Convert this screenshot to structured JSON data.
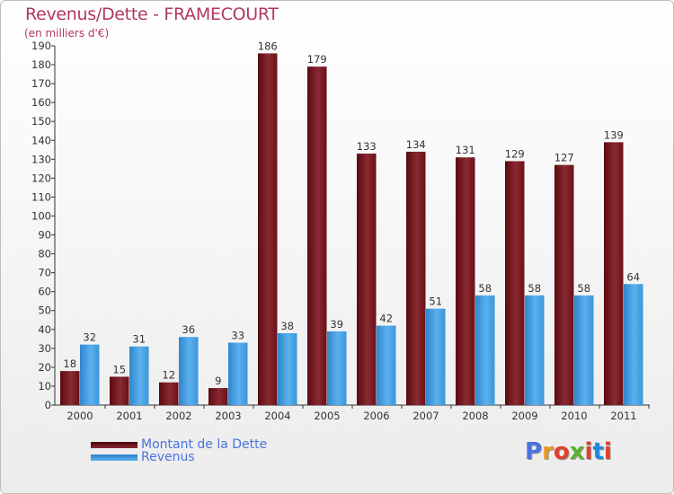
{
  "header": {
    "title": "Revenus/Dette - FRAMECOURT",
    "subtitle": "(en milliers d'€)"
  },
  "legend": {
    "items": [
      {
        "label": "Montant de la Dette",
        "color": "#6b0c14"
      },
      {
        "label": "Revenus",
        "color": "#3a9ae0"
      }
    ]
  },
  "logo": {
    "text": "Proxiti",
    "colors": [
      "#4a72e0",
      "#e89a1c",
      "#e0402c",
      "#5cb030",
      "#e0402c",
      "#1c8ce0",
      "#e0402c"
    ]
  },
  "chart_data": {
    "type": "bar",
    "title": "Revenus/Dette - FRAMECOURT",
    "subtitle": "(en milliers d'€)",
    "categories": [
      "2000",
      "2001",
      "2002",
      "2003",
      "2004",
      "2005",
      "2006",
      "2007",
      "2008",
      "2009",
      "2010",
      "2011"
    ],
    "series": [
      {
        "name": "Montant de la Dette",
        "color": "#7a1c24",
        "values": [
          18,
          15,
          12,
          9,
          186,
          179,
          133,
          134,
          131,
          129,
          127,
          139
        ]
      },
      {
        "name": "Revenus",
        "color": "#3a9ae0",
        "values": [
          32,
          31,
          36,
          33,
          38,
          39,
          42,
          51,
          58,
          58,
          58,
          64
        ]
      }
    ],
    "ylim": [
      0,
      190
    ],
    "ytick_step": 10,
    "grid": false,
    "legend_position": "bottom-left"
  }
}
